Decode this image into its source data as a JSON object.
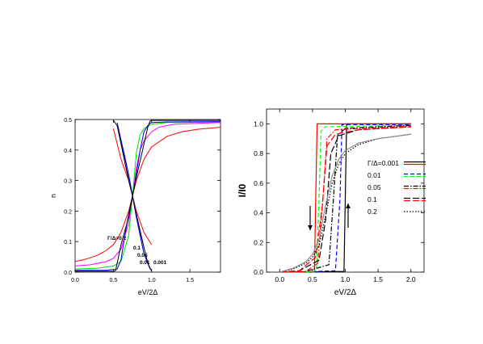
{
  "chart_data": [
    {
      "type": "line",
      "xlabel": "eV/2Δ",
      "ylabel": "n",
      "xlim": [
        0,
        1.9
      ],
      "ylim": [
        0,
        0.5
      ],
      "xticks": [
        "0.0",
        "0.5",
        "1.0",
        "1.5"
      ],
      "yticks": [
        "0.0",
        "0.1",
        "0.2",
        "0.3",
        "0.4",
        "0.5"
      ],
      "grid": false,
      "annotations": [
        "Γ/Δ=0.2",
        "0.1",
        "0.05",
        "0.01",
        "0.001"
      ],
      "series": [
        {
          "param": 0.2,
          "color": "#ff0000",
          "x": [
            0,
            0.1,
            0.2,
            0.3,
            0.4,
            0.5,
            0.6,
            0.7,
            0.75,
            0.8,
            0.9,
            1.0,
            1.2,
            1.4,
            1.6,
            1.9
          ],
          "y": [
            0.035,
            0.04,
            0.047,
            0.056,
            0.07,
            0.09,
            0.13,
            0.2,
            0.25,
            0.3,
            0.37,
            0.41,
            0.445,
            0.46,
            0.468,
            0.475
          ]
        },
        {
          "param": 0.2,
          "color": "#ff0000",
          "x": [
            0.5,
            0.6,
            0.7,
            0.75,
            0.8,
            0.9,
            1.0
          ],
          "y": [
            0.47,
            0.37,
            0.3,
            0.25,
            0.2,
            0.13,
            0.09
          ]
        },
        {
          "param": 0.1,
          "color": "#ff00ff",
          "x": [
            0,
            0.2,
            0.4,
            0.5,
            0.6,
            0.7,
            0.75,
            0.8,
            0.85,
            0.9,
            1.0,
            1.1,
            1.3,
            1.9
          ],
          "y": [
            0.02,
            0.024,
            0.034,
            0.045,
            0.075,
            0.16,
            0.25,
            0.34,
            0.4,
            0.43,
            0.46,
            0.475,
            0.485,
            0.49
          ]
        },
        {
          "param": 0.1,
          "color": "#ff00ff",
          "x": [
            0.55,
            0.65,
            0.7,
            0.75,
            0.8,
            0.9
          ],
          "y": [
            0.48,
            0.37,
            0.31,
            0.25,
            0.19,
            0.08
          ]
        },
        {
          "param": 0.05,
          "color": "#00dd00",
          "x": [
            0,
            0.3,
            0.5,
            0.6,
            0.7,
            0.75,
            0.8,
            0.85,
            0.9,
            1.0,
            1.2,
            1.9
          ],
          "y": [
            0.01,
            0.013,
            0.02,
            0.035,
            0.12,
            0.25,
            0.39,
            0.45,
            0.47,
            0.485,
            0.49,
            0.492
          ]
        },
        {
          "param": 0.05,
          "color": "#00dd00",
          "x": [
            0.55,
            0.65,
            0.75,
            0.85,
            0.9
          ],
          "y": [
            0.48,
            0.38,
            0.25,
            0.12,
            0.06
          ]
        },
        {
          "param": 0.01,
          "color": "#0000ff",
          "x": [
            0,
            0.4,
            0.55,
            0.6,
            0.65,
            0.7,
            0.75,
            0.8,
            0.85,
            0.9,
            0.95,
            0.98,
            1.0,
            1.2,
            1.9
          ],
          "y": [
            0.006,
            0.006,
            0.01,
            0.04,
            0.12,
            0.19,
            0.25,
            0.32,
            0.4,
            0.46,
            0.48,
            0.488,
            0.49,
            0.492,
            0.493
          ]
        },
        {
          "param": 0.01,
          "color": "#0000ff",
          "x": [
            0.55,
            0.7,
            0.75,
            0.8,
            0.9,
            0.98
          ],
          "y": [
            0.49,
            0.32,
            0.25,
            0.18,
            0.06,
            0.01
          ]
        },
        {
          "param": 0.001,
          "color": "#000000",
          "x": [
            0,
            0.5,
            0.53,
            0.6,
            0.7,
            0.75,
            0.8,
            0.9,
            0.95,
            0.98,
            1.0,
            1.9
          ],
          "y": [
            0.003,
            0.003,
            0.005,
            0.09,
            0.18,
            0.25,
            0.31,
            0.42,
            0.475,
            0.495,
            0.497,
            0.497
          ]
        },
        {
          "param": 0.001,
          "color": "#000000",
          "x": [
            0.5,
            0.55,
            0.7,
            0.75,
            0.8,
            0.9,
            0.95,
            1.0
          ],
          "y": [
            0.497,
            0.48,
            0.3,
            0.25,
            0.19,
            0.08,
            0.03,
            0.003
          ]
        }
      ]
    },
    {
      "type": "line",
      "xlabel": "eV/2Δ",
      "ylabel": "I/I0",
      "xlim": [
        -0.2,
        2.2
      ],
      "ylim": [
        0,
        1.1
      ],
      "xticks": [
        "0.0",
        "0.5",
        "1.0",
        "1.5",
        "2.0"
      ],
      "yticks": [
        "0.0",
        "0.2",
        "0.4",
        "0.6",
        "0.8",
        "1.0"
      ],
      "grid": false,
      "legend_position": "center-right",
      "legend": [
        "Γ/Δ=0.001",
        "0.01",
        "0.05",
        "0.1",
        "0.2"
      ],
      "series": [
        {
          "name": "Γ/Δ=0.001",
          "color": "#000000",
          "dash": "solid",
          "direction": "up",
          "x": [
            0,
            0.6,
            0.98,
            1.0,
            1.02,
            2.0
          ],
          "y": [
            0,
            0.002,
            0.005,
            0.5,
            1.0,
            1.0
          ]
        },
        {
          "name": "Γ/Δ=0.001",
          "color": "#ff0000",
          "dash": "solid",
          "direction": "down",
          "x": [
            0,
            0.5,
            0.53,
            0.55,
            0.57,
            2.0
          ],
          "y": [
            0,
            0.002,
            0.005,
            0.5,
            1.0,
            1.0
          ]
        },
        {
          "name": "0.01",
          "color": "#0000ff",
          "dash": "dash",
          "direction": "up",
          "x": [
            0,
            0.5,
            0.85,
            0.92,
            0.95,
            2.0
          ],
          "y": [
            0,
            0.003,
            0.01,
            0.5,
            0.995,
            0.995
          ]
        },
        {
          "name": "0.01",
          "color": "#00ff00",
          "dash": "dash",
          "direction": "down",
          "x": [
            0,
            0.5,
            0.56,
            0.6,
            0.63,
            0.7,
            2.0
          ],
          "y": [
            0,
            0.003,
            0.01,
            0.5,
            0.95,
            0.98,
            0.99
          ]
        },
        {
          "name": "0.05",
          "color": "#000000",
          "dash": "dashdot",
          "direction": "up",
          "x": [
            0,
            0.4,
            0.75,
            0.82,
            0.88,
            1.0,
            2.0
          ],
          "y": [
            0,
            0.005,
            0.05,
            0.5,
            0.92,
            0.97,
            0.99
          ]
        },
        {
          "name": "0.05",
          "color": "#ff0000",
          "dash": "dashdot",
          "direction": "down",
          "x": [
            0,
            0.4,
            0.58,
            0.66,
            0.72,
            0.85,
            2.0
          ],
          "y": [
            0,
            0.005,
            0.06,
            0.5,
            0.9,
            0.96,
            0.985
          ]
        },
        {
          "name": "0.1",
          "color": "#000000",
          "dash": "longdash",
          "direction": "up",
          "x": [
            0,
            0.3,
            0.6,
            0.7,
            0.78,
            0.9,
            1.2,
            2.0
          ],
          "y": [
            0,
            0.01,
            0.08,
            0.35,
            0.8,
            0.92,
            0.96,
            0.98
          ]
        },
        {
          "name": "0.1",
          "color": "#ff0000",
          "dash": "longdash",
          "direction": "down",
          "x": [
            0,
            0.3,
            0.55,
            0.65,
            0.72,
            0.85,
            1.2,
            2.0
          ],
          "y": [
            0,
            0.01,
            0.1,
            0.45,
            0.85,
            0.93,
            0.96,
            0.98
          ]
        },
        {
          "name": "0.2",
          "color": "#000000",
          "dash": "dot",
          "direction": "up",
          "x": [
            0,
            0.2,
            0.4,
            0.5,
            0.6,
            0.7,
            0.8,
            0.9,
            1.0,
            1.2,
            1.5,
            2.0
          ],
          "y": [
            0,
            0.02,
            0.06,
            0.1,
            0.18,
            0.38,
            0.6,
            0.73,
            0.8,
            0.86,
            0.9,
            0.93
          ]
        },
        {
          "name": "0.2",
          "color": "#888888",
          "dash": "solid",
          "direction": "down",
          "x": [
            0,
            0.2,
            0.4,
            0.5,
            0.6,
            0.7,
            0.8,
            0.9,
            1.0,
            1.2,
            1.5,
            2.0
          ],
          "y": [
            0,
            0.025,
            0.07,
            0.12,
            0.22,
            0.45,
            0.65,
            0.76,
            0.82,
            0.87,
            0.9,
            0.93
          ]
        }
      ]
    }
  ]
}
